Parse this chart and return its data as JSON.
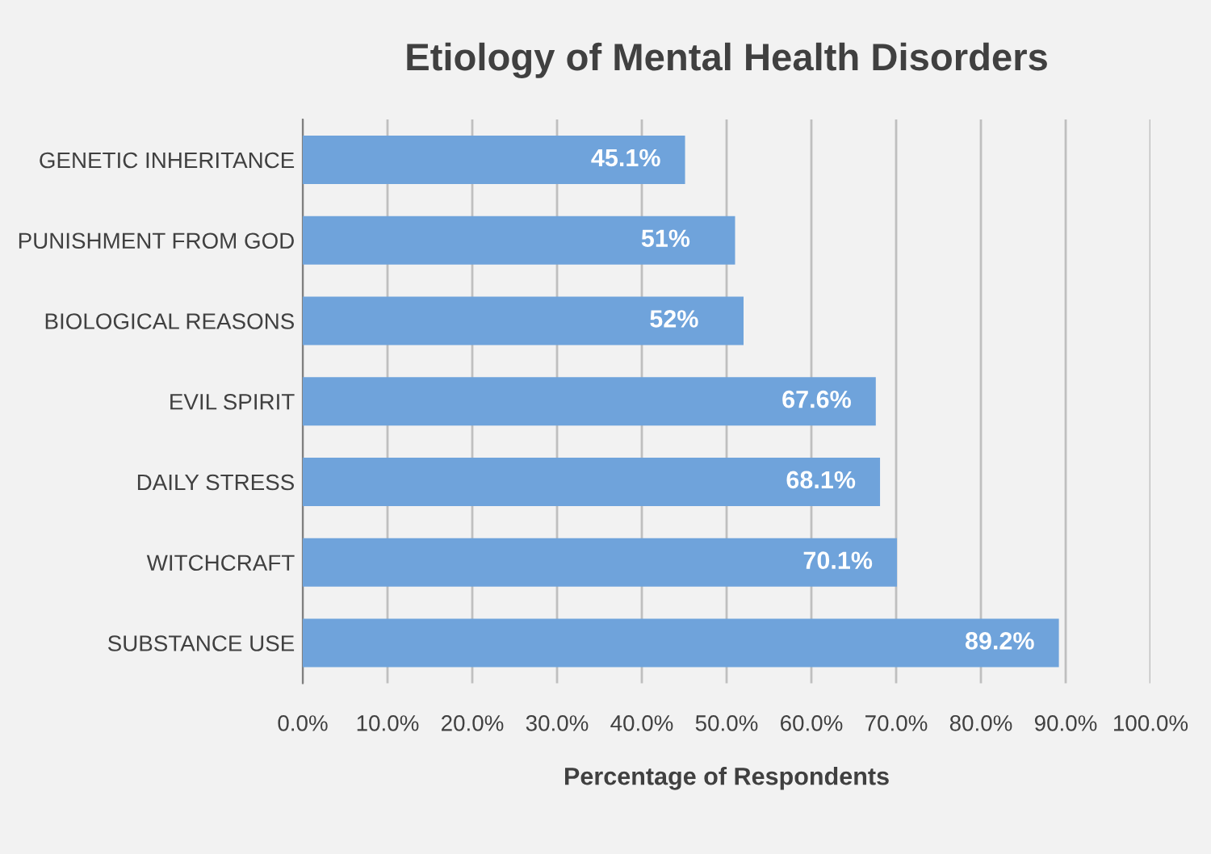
{
  "chart_data": {
    "type": "bar",
    "orientation": "horizontal",
    "title": "Etiology of Mental Health Disorders",
    "xlabel": "Percentage of Respondents",
    "categories": [
      "GENETIC INHERITANCE",
      "PUNISHMENT FROM GOD",
      "BIOLOGICAL REASONS",
      "EVIL SPIRIT",
      "DAILY STRESS",
      "WITCHCRAFT",
      "SUBSTANCE USE"
    ],
    "values": [
      45.1,
      51,
      52,
      67.6,
      68.1,
      70.1,
      89.2
    ],
    "value_labels": [
      "45.1%",
      "51%",
      "52%",
      "67.6%",
      "68.1%",
      "70.1%",
      "89.2%"
    ],
    "color": "#6fa3db",
    "xlim": [
      0,
      100
    ],
    "xticks": [
      {
        "value": 0,
        "label": "0.0%"
      },
      {
        "value": 10,
        "label": "10.0%"
      },
      {
        "value": 20,
        "label": "20.0%"
      },
      {
        "value": 30,
        "label": "30.0%"
      },
      {
        "value": 40,
        "label": "40.0%"
      },
      {
        "value": 50,
        "label": "50.0%"
      },
      {
        "value": 60,
        "label": "60.0%"
      },
      {
        "value": 70,
        "label": "70.0%"
      },
      {
        "value": 80,
        "label": "80.0%"
      },
      {
        "value": 90,
        "label": "90.0%"
      },
      {
        "value": 100,
        "label": "100.0%"
      }
    ],
    "grid": "x",
    "legend": false
  }
}
